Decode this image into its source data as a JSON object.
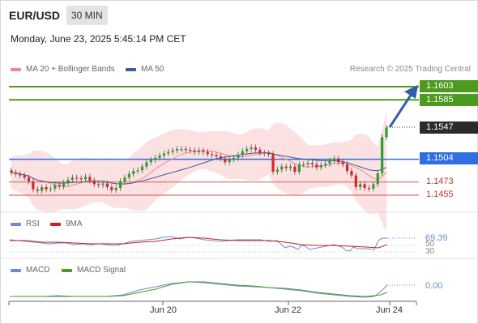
{
  "header": {
    "pair": "EUR/USD",
    "timeframe": "30 MIN",
    "datetime": "Monday, June 23, 2025 5:45:14 PM CET"
  },
  "legend": {
    "ma20": "MA 20 + Bollinger Bands",
    "ma50": "MA 50",
    "credit": "Research © 2025 Trading Central"
  },
  "colors": {
    "green": "#4e9a1e",
    "blue": "#2f6fe0",
    "red": "#e06a6a",
    "dark": "#2b2b2b",
    "band": "#f7c9c9",
    "ma50": "#3c5a99",
    "arrow": "#2f5fa8"
  },
  "levels": {
    "r2": "1.1603",
    "r1": "1.1585",
    "current": "1.1547",
    "pivot": "1.1504",
    "s1": "1.1473",
    "s2": "1.1455"
  },
  "rsi": {
    "label": "RSI",
    "ma_label": "9MA",
    "value": "69.39",
    "lvl_50": "50",
    "lvl_30": "30"
  },
  "macd": {
    "label": "MACD",
    "signal_label": "MACD Signal",
    "value": "0.00"
  },
  "chart_data": {
    "type": "candlestick",
    "x_ticks": [
      "Jun 20",
      "Jun 22",
      "Jun 24"
    ],
    "y_unit": "price",
    "close_series": [
      1.1486,
      1.1484,
      1.1482,
      1.1479,
      1.1474,
      1.1463,
      1.1461,
      1.1466,
      1.1463,
      1.1464,
      1.1469,
      1.1467,
      1.1472,
      1.1476,
      1.1479,
      1.1478,
      1.1477,
      1.148,
      1.1475,
      1.147,
      1.1469,
      1.1471,
      1.1466,
      1.1462,
      1.1465,
      1.1474,
      1.1479,
      1.1484,
      1.1488,
      1.1489,
      1.1494,
      1.15,
      1.1503,
      1.1506,
      1.1509,
      1.1512,
      1.1514,
      1.1516,
      1.1518,
      1.1518,
      1.1517,
      1.1516,
      1.1514,
      1.1516,
      1.1514,
      1.1511,
      1.151,
      1.1508,
      1.1505,
      1.15,
      1.1504,
      1.1506,
      1.151,
      1.1515,
      1.1518,
      1.152,
      1.1517,
      1.1513,
      1.1512,
      1.1511,
      1.1487,
      1.149,
      1.1494,
      1.1492,
      1.1494,
      1.1487,
      1.1497,
      1.1497,
      1.1499,
      1.1497,
      1.1493,
      1.1496,
      1.1498,
      1.1502,
      1.1505,
      1.15,
      1.1497,
      1.1488,
      1.1482,
      1.1466,
      1.147,
      1.1465,
      1.1464,
      1.147,
      1.1485,
      1.1534,
      1.1547
    ],
    "ma_levels": {
      "r2": 1.1603,
      "r1": 1.1585,
      "pivot": 1.1504,
      "s1": 1.1473,
      "s2": 1.1455
    },
    "rsi_last": 69.39,
    "macd_last": 0.0
  }
}
